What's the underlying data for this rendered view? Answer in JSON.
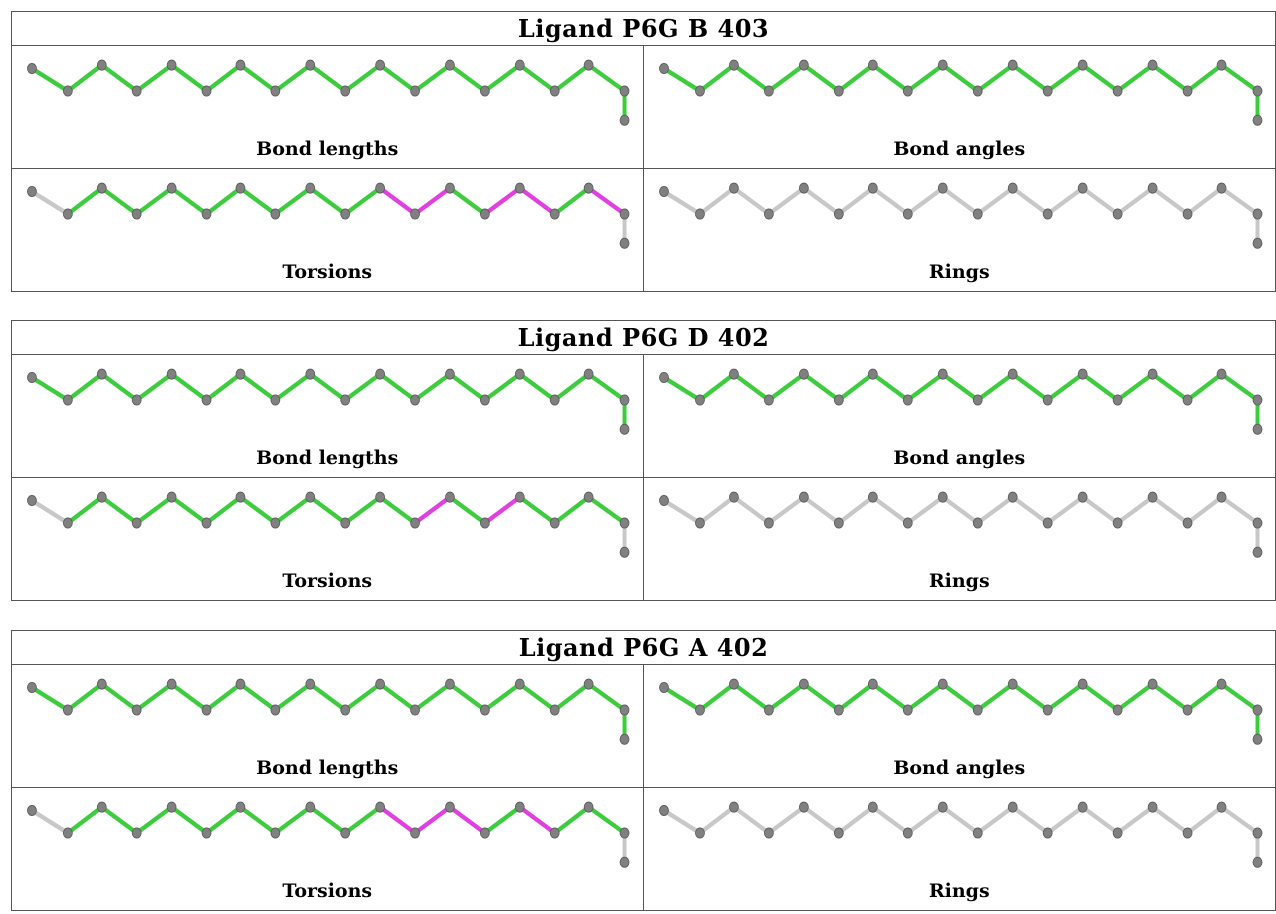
{
  "colors": {
    "ok": "#3dcc3d",
    "outlier": "#e040e0",
    "none": "#c8c8c8",
    "atom": "#808080"
  },
  "ligands": [
    {
      "title": "Ligand P6G B 403",
      "panels": [
        {
          "label": "Bond lengths",
          "bonds": [
            "ok",
            "ok",
            "ok",
            "ok",
            "ok",
            "ok",
            "ok",
            "ok",
            "ok",
            "ok",
            "ok",
            "ok",
            "ok",
            "ok",
            "ok",
            "ok",
            "ok"
          ]
        },
        {
          "label": "Bond angles",
          "bonds": [
            "ok",
            "ok",
            "ok",
            "ok",
            "ok",
            "ok",
            "ok",
            "ok",
            "ok",
            "ok",
            "ok",
            "ok",
            "ok",
            "ok",
            "ok",
            "ok",
            "ok"
          ]
        },
        {
          "label": "Torsions",
          "bonds": [
            "none",
            "ok",
            "ok",
            "ok",
            "ok",
            "ok",
            "ok",
            "ok",
            "ok",
            "ok",
            "ok",
            "outlier",
            "outlier",
            "ok",
            "ok",
            "outlier",
            "outlier",
            "ok",
            "outlier",
            "none"
          ]
        },
        {
          "label": "Rings",
          "bonds": [
            "none",
            "none",
            "none",
            "none",
            "none",
            "none",
            "none",
            "none",
            "none",
            "none",
            "none",
            "none",
            "none",
            "none",
            "none",
            "none",
            "none",
            "none",
            "none",
            "none"
          ]
        }
      ]
    },
    {
      "title": "Ligand P6G D 402",
      "panels": [
        {
          "label": "Bond lengths",
          "bonds": [
            "ok",
            "ok",
            "ok",
            "ok",
            "ok",
            "ok",
            "ok",
            "ok",
            "ok",
            "ok",
            "ok",
            "ok",
            "ok",
            "ok",
            "ok",
            "ok",
            "ok"
          ]
        },
        {
          "label": "Bond angles",
          "bonds": [
            "ok",
            "ok",
            "ok",
            "ok",
            "ok",
            "ok",
            "ok",
            "ok",
            "ok",
            "ok",
            "ok",
            "ok",
            "ok",
            "ok",
            "ok",
            "ok",
            "ok"
          ]
        },
        {
          "label": "Torsions",
          "bonds": [
            "none",
            "ok",
            "ok",
            "ok",
            "ok",
            "ok",
            "ok",
            "ok",
            "ok",
            "ok",
            "ok",
            "ok",
            "outlier",
            "ok",
            "ok",
            "outlier",
            "ok",
            "ok",
            "ok",
            "none"
          ]
        },
        {
          "label": "Rings",
          "bonds": [
            "none",
            "none",
            "none",
            "none",
            "none",
            "none",
            "none",
            "none",
            "none",
            "none",
            "none",
            "none",
            "none",
            "none",
            "none",
            "none",
            "none",
            "none",
            "none",
            "none"
          ]
        }
      ]
    },
    {
      "title": "Ligand P6G A 402",
      "panels": [
        {
          "label": "Bond lengths",
          "bonds": [
            "ok",
            "ok",
            "ok",
            "ok",
            "ok",
            "ok",
            "ok",
            "ok",
            "ok",
            "ok",
            "ok",
            "ok",
            "ok",
            "ok",
            "ok",
            "ok",
            "ok"
          ]
        },
        {
          "label": "Bond angles",
          "bonds": [
            "ok",
            "ok",
            "ok",
            "ok",
            "ok",
            "ok",
            "ok",
            "ok",
            "ok",
            "ok",
            "ok",
            "ok",
            "ok",
            "ok",
            "ok",
            "ok",
            "ok"
          ]
        },
        {
          "label": "Torsions",
          "bonds": [
            "none",
            "ok",
            "ok",
            "ok",
            "ok",
            "ok",
            "ok",
            "ok",
            "ok",
            "ok",
            "ok",
            "outlier",
            "outlier",
            "outlier",
            "outlier",
            "ok",
            "outlier",
            "ok",
            "ok",
            "none"
          ]
        },
        {
          "label": "Rings",
          "bonds": [
            "none",
            "none",
            "none",
            "none",
            "none",
            "none",
            "none",
            "none",
            "none",
            "none",
            "none",
            "none",
            "none",
            "none",
            "none",
            "none",
            "none",
            "none",
            "none",
            "none"
          ]
        }
      ]
    }
  ]
}
